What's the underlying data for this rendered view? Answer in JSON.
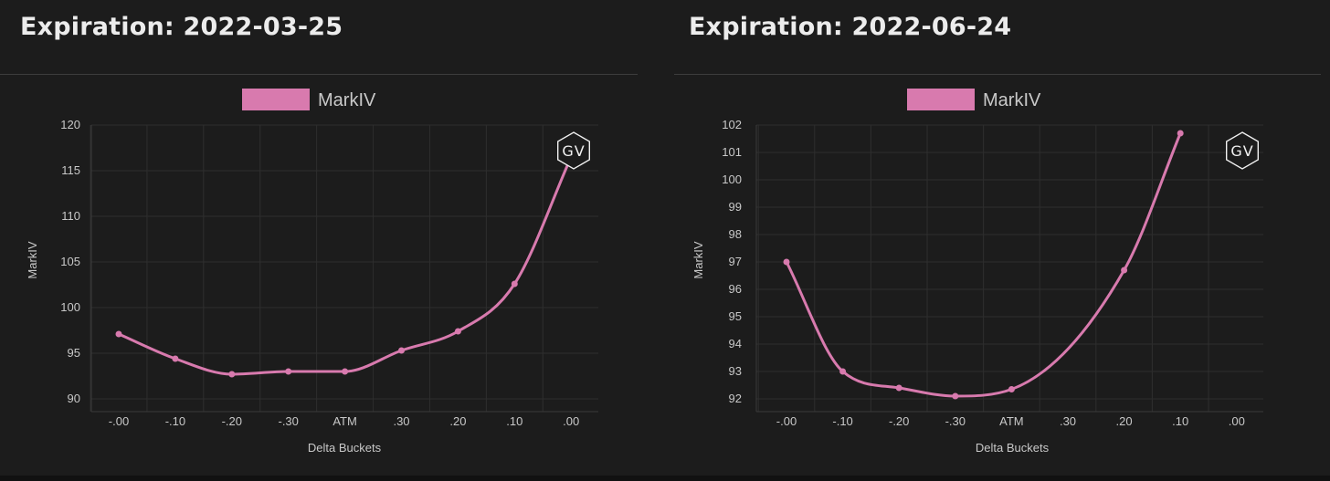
{
  "chart_data": [
    {
      "type": "line",
      "title": "Expiration: 2022-03-25",
      "xlabel": "Delta Buckets",
      "ylabel": "MarkIV",
      "categories": [
        "-.00",
        "-.10",
        "-.20",
        "-.30",
        "ATM",
        ".30",
        ".20",
        ".10",
        ".00"
      ],
      "yticks": [
        90,
        95,
        100,
        105,
        110,
        115,
        120
      ],
      "ylim": [
        90,
        120
      ],
      "grid": true,
      "legend": "top-center",
      "watermark": "GV",
      "series": [
        {
          "name": "MarkIV",
          "color": "#d87aae",
          "values": [
            97.1,
            94.4,
            92.7,
            93.0,
            93.0,
            95.3,
            97.4,
            102.6,
            116.5
          ]
        }
      ]
    },
    {
      "type": "line",
      "title": "Expiration: 2022-06-24",
      "xlabel": "Delta Buckets",
      "ylabel": "MarkIV",
      "categories": [
        "-.00",
        "-.10",
        "-.20",
        "-.30",
        "ATM",
        ".30",
        ".20",
        ".10",
        ".00"
      ],
      "yticks": [
        92,
        93,
        94,
        95,
        96,
        97,
        98,
        99,
        100,
        101,
        102
      ],
      "ylim": [
        92,
        102
      ],
      "grid": true,
      "legend": "top-center",
      "watermark": "GV",
      "series": [
        {
          "name": "MarkIV",
          "color": "#d87aae",
          "values": [
            97.0,
            93.0,
            92.4,
            92.1,
            92.35,
            null,
            96.7,
            101.7,
            null
          ]
        }
      ]
    }
  ]
}
